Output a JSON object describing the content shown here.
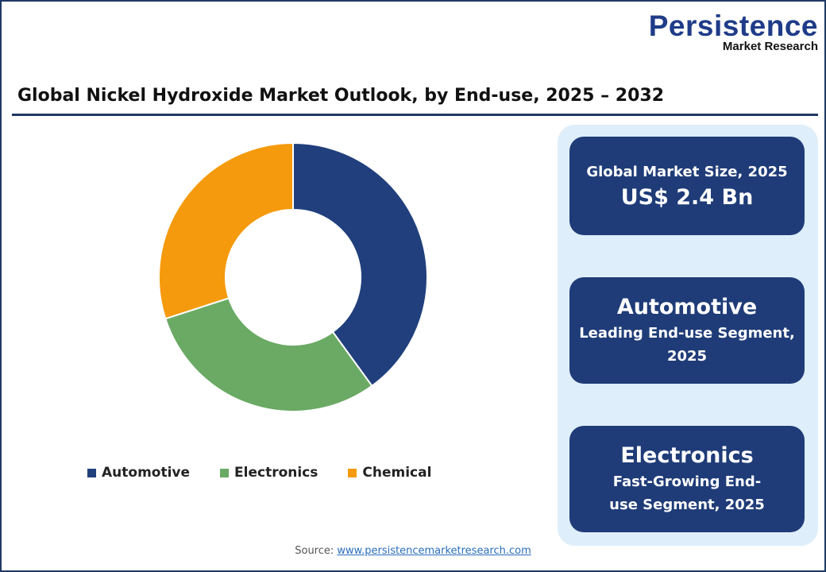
{
  "logo": {
    "line1": "Persistence",
    "line2": "Market Research"
  },
  "chart_data": {
    "type": "pie",
    "variant": "donut",
    "title": "Global Nickel Hydroxide Market Outlook, by End-use, 2025 – 2032",
    "categories": [
      "Automotive",
      "Electronics",
      "Chemical"
    ],
    "values": [
      40,
      30,
      30
    ],
    "unit": "%",
    "colors": [
      "#203f7c",
      "#6aaa64",
      "#f59a0c"
    ],
    "legend": "bottom"
  },
  "cards": [
    {
      "line1": "Global Market Size, 2025",
      "line2": "US$ 2.4 Bn"
    },
    {
      "line1": "Automotive",
      "line2": "Leading End-use Segment, 2025"
    },
    {
      "line1": "Electronics",
      "line2": "Fast-Growing End-use Segment, 2025"
    }
  ],
  "source": {
    "label": "Source:",
    "link": "www.persistencemarketresearch.com"
  }
}
